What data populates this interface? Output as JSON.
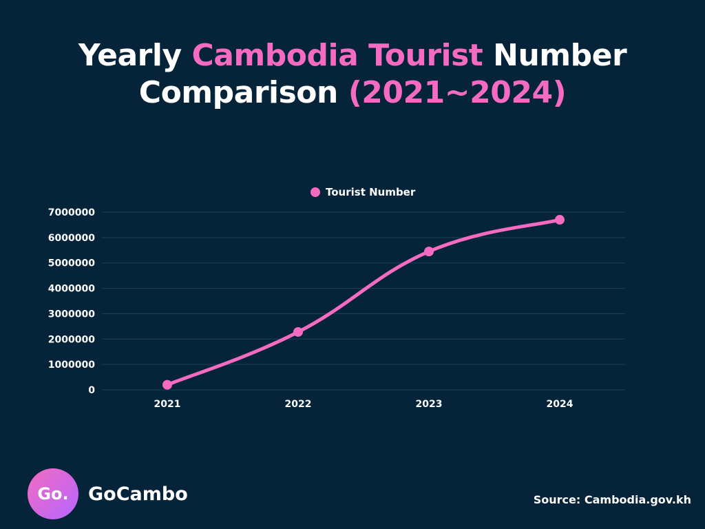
{
  "header": {
    "title_part1": "Yearly ",
    "title_highlight1": "Cambodia Tourist",
    "title_part2": " Number",
    "title_part3": "Comparison ",
    "title_highlight2": "(2021~2024)"
  },
  "colors": {
    "background": "#05243a",
    "accent": "#f46bc1",
    "grid": "#1d4257",
    "text": "#ffffff"
  },
  "chart_data": {
    "type": "line",
    "title": "Yearly Cambodia Tourist Number Comparison (2021~2024)",
    "xlabel": "",
    "ylabel": "",
    "legend": "top-center",
    "grid": true,
    "categories": [
      "2021",
      "2022",
      "2023",
      "2024"
    ],
    "series": [
      {
        "name": "Tourist Number",
        "values": [
          200000,
          2280000,
          5450000,
          6700000
        ]
      }
    ],
    "ylim": [
      0,
      7000000
    ],
    "yticks": [
      "0",
      "1000000",
      "2000000",
      "3000000",
      "4000000",
      "5000000",
      "6000000",
      "7000000"
    ]
  },
  "footer": {
    "logo_mark": "Go.",
    "logo_text": "GoCambo",
    "source": "Source: Cambodia.gov.kh"
  }
}
